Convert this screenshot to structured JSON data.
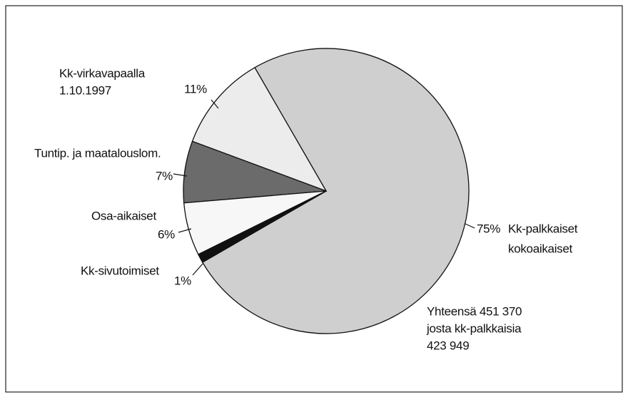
{
  "chart_data": {
    "type": "pie",
    "categories": [
      [
        "Kk-palkkaiset",
        "kokoaikaiset"
      ],
      [
        "Kk-virkavapaalla",
        "1.10.1997"
      ],
      [
        "Tuntip. ja maatalouslom."
      ],
      [
        "Osa-aikaiset"
      ],
      [
        "Kk-sivutoimiset"
      ]
    ],
    "values": [
      75,
      11,
      7,
      6,
      1
    ],
    "value_labels": [
      "75%",
      "11%",
      "7%",
      "6%",
      "1%"
    ],
    "colors": [
      "#cfcfcf",
      "#ececec",
      "#6b6b6b",
      "#f7f7f7",
      "#111111"
    ],
    "startangle": 210,
    "counterclock": true,
    "annotation": [
      "Yhteensä 451 370",
      "josta kk-palkkaisia",
      "423 949"
    ]
  }
}
